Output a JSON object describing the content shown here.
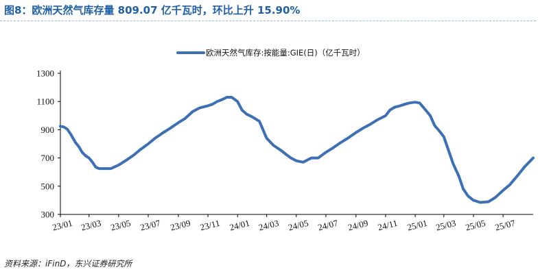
{
  "figure": {
    "title": "图8：欧洲天然气库存量 809.07 亿千瓦时，环比上升 15.90%",
    "source": "资料来源：iFinD，东兴证券研究所"
  },
  "colors": {
    "series": "#3d6fb5",
    "title": "#1f5fa6",
    "axis": "#000000"
  },
  "chart_data": {
    "type": "line",
    "title": "",
    "xlabel": "",
    "ylabel": "",
    "ylim": [
      300,
      1300
    ],
    "yticks": [
      300,
      500,
      700,
      900,
      1100,
      1300
    ],
    "xticks": [
      "23/01",
      "23/03",
      "23/05",
      "23/07",
      "23/09",
      "23/11",
      "24/01",
      "24/03",
      "24/05",
      "24/07",
      "24/09",
      "24/11",
      "25/01",
      "25/03",
      "25/05",
      "25/07"
    ],
    "legend": {
      "position": "top-center"
    },
    "grid": false,
    "series": [
      {
        "name": "欧洲天然气库存:按能量:GIE(日)（亿千瓦时）",
        "x": [
          "2023-01-01",
          "2023-01-08",
          "2023-01-15",
          "2023-01-22",
          "2023-02-01",
          "2023-02-08",
          "2023-02-15",
          "2023-02-22",
          "2023-03-01",
          "2023-03-08",
          "2023-03-15",
          "2023-03-22",
          "2023-04-01",
          "2023-04-15",
          "2023-05-01",
          "2023-05-15",
          "2023-06-01",
          "2023-06-15",
          "2023-07-01",
          "2023-07-15",
          "2023-08-01",
          "2023-08-15",
          "2023-09-01",
          "2023-09-15",
          "2023-10-01",
          "2023-10-15",
          "2023-11-01",
          "2023-11-10",
          "2023-11-20",
          "2023-12-01",
          "2023-12-10",
          "2023-12-20",
          "2024-01-01",
          "2024-01-10",
          "2024-01-20",
          "2024-02-01",
          "2024-02-15",
          "2024-03-01",
          "2024-03-15",
          "2024-04-01",
          "2024-04-10",
          "2024-04-20",
          "2024-05-01",
          "2024-05-15",
          "2024-06-01",
          "2024-06-15",
          "2024-07-01",
          "2024-07-15",
          "2024-08-01",
          "2024-08-15",
          "2024-09-01",
          "2024-09-15",
          "2024-10-01",
          "2024-10-15",
          "2024-11-01",
          "2024-11-10",
          "2024-11-20",
          "2024-12-01",
          "2024-12-10",
          "2024-12-20",
          "2025-01-01",
          "2025-01-10",
          "2025-01-20",
          "2025-02-01",
          "2025-02-10",
          "2025-02-20",
          "2025-03-01",
          "2025-03-10",
          "2025-03-20",
          "2025-04-01",
          "2025-04-10",
          "2025-04-20",
          "2025-05-01",
          "2025-05-15",
          "2025-06-01",
          "2025-06-15",
          "2025-07-01",
          "2025-07-15",
          "2025-08-01",
          "2025-08-15",
          "2025-09-01"
        ],
        "values": [
          925,
          920,
          905,
          870,
          810,
          780,
          740,
          715,
          700,
          670,
          635,
          625,
          625,
          625,
          650,
          680,
          720,
          760,
          800,
          840,
          880,
          910,
          950,
          980,
          1030,
          1055,
          1070,
          1080,
          1100,
          1115,
          1130,
          1130,
          1100,
          1040,
          1010,
          990,
          960,
          840,
          790,
          750,
          725,
          700,
          680,
          670,
          700,
          700,
          740,
          770,
          810,
          840,
          880,
          910,
          940,
          970,
          1000,
          1040,
          1060,
          1070,
          1080,
          1090,
          1095,
          1090,
          1050,
          1000,
          930,
          890,
          850,
          760,
          660,
          570,
          480,
          430,
          400,
          385,
          390,
          420,
          470,
          510,
          580,
          640,
          700
        ]
      }
    ]
  }
}
